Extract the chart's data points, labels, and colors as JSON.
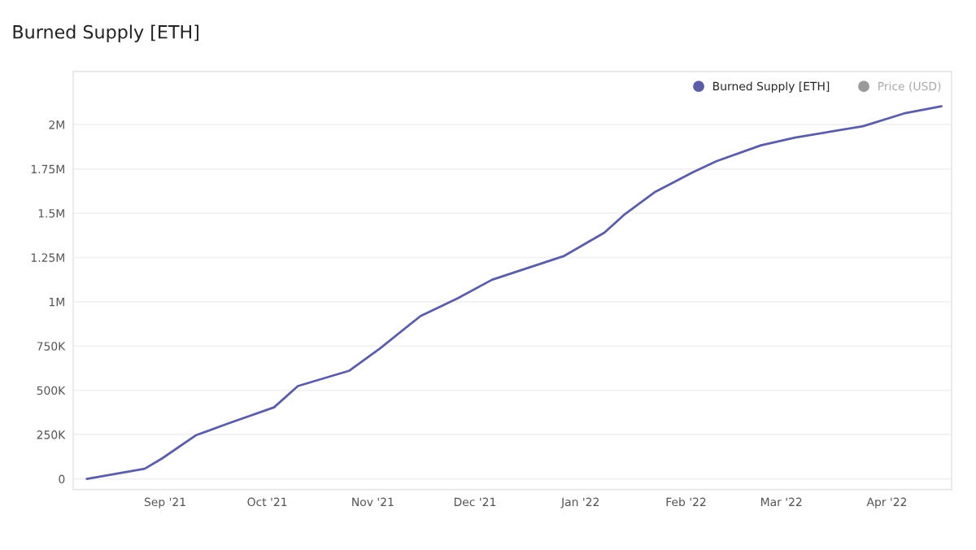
{
  "chart_data": {
    "type": "line",
    "title": "Burned Supply [ETH]",
    "x": [
      "2021-08-09",
      "2021-08-26",
      "2021-08-31",
      "2021-09-10",
      "2021-09-19",
      "2021-10-03",
      "2021-10-10",
      "2021-10-25",
      "2021-11-03",
      "2021-11-15",
      "2021-11-26",
      "2021-12-06",
      "2021-12-27",
      "2022-01-08",
      "2022-01-14",
      "2022-01-23",
      "2022-02-03",
      "2022-02-10",
      "2022-02-23",
      "2022-03-05",
      "2022-03-25",
      "2022-04-06",
      "2022-04-17"
    ],
    "series": [
      {
        "name": "Burned Supply [ETH]",
        "color": "#5b5ea6",
        "values": [
          0,
          57000,
          114000,
          246000,
          309000,
          404000,
          524000,
          610000,
          735000,
          919000,
          1020000,
          1124000,
          1257000,
          1390000,
          1494000,
          1621000,
          1731000,
          1794000,
          1883000,
          1927000,
          1991000,
          2063000,
          2104000
        ]
      },
      {
        "name": "Price (USD)",
        "color": "#9a9a9a",
        "values": [
          null,
          null,
          null,
          null,
          null,
          null,
          null,
          null,
          null,
          null,
          null,
          null,
          null,
          null,
          null,
          null,
          null,
          null,
          null,
          null,
          null,
          null,
          null
        ]
      }
    ],
    "xlim": [
      "2021-08-05",
      "2022-04-20"
    ],
    "xticks": [
      {
        "value": "2021-09-01",
        "label": "Sep '21"
      },
      {
        "value": "2021-10-01",
        "label": "Oct '21"
      },
      {
        "value": "2021-11-01",
        "label": "Nov '21"
      },
      {
        "value": "2021-12-01",
        "label": "Dec '21"
      },
      {
        "value": "2022-01-01",
        "label": "Jan '22"
      },
      {
        "value": "2022-02-01",
        "label": "Feb '22"
      },
      {
        "value": "2022-03-01",
        "label": "Mar '22"
      },
      {
        "value": "2022-04-01",
        "label": "Apr '22"
      }
    ],
    "ylim": [
      -60000,
      2300000
    ],
    "yticks": [
      0,
      {
        "value": 250000,
        "label": "250K"
      },
      {
        "value": 500000,
        "label": "500K"
      },
      {
        "value": 750000,
        "label": "750K"
      },
      {
        "value": 1000000,
        "label": "1M"
      },
      {
        "value": 1250000,
        "label": "1.25M"
      },
      {
        "value": 1500000,
        "label": "1.5M"
      },
      {
        "value": 1750000,
        "label": "1.75M"
      },
      {
        "value": 2000000,
        "label": "2M"
      }
    ],
    "grid": "y",
    "legend": "top right",
    "marker": "none",
    "line_style": "solid"
  }
}
